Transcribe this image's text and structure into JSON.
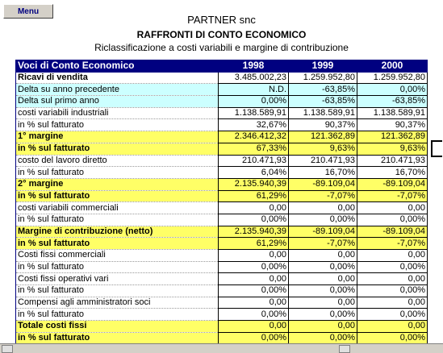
{
  "header": {
    "menu": "Menu",
    "company": "PARTNER snc",
    "title": "RAFFRONTI DI CONTO ECONOMICO",
    "subtitle": "Riclassificazione a costi variabili e margine di contribuzione"
  },
  "table": {
    "columns": [
      "Voci di Conto Economico",
      "1998",
      "1999",
      "2000"
    ],
    "rows": [
      {
        "cells": [
          "Ricavi di vendita",
          "3.485.002,23",
          "1.259.952,80",
          "1.259.952,80"
        ],
        "bold": true,
        "bg": "#ffffff"
      },
      {
        "cells": [
          "Delta su anno precedente",
          "N.D.",
          "-63,85%",
          "0,00%"
        ],
        "bold": false,
        "bg": "#ccffff"
      },
      {
        "cells": [
          "Delta sul primo anno",
          "0,00%",
          "-63,85%",
          "-63,85%"
        ],
        "bold": false,
        "bg": "#ccffff"
      },
      {
        "cells": [
          "costi variabili industriali",
          "1.138.589,91",
          "1.138.589,91",
          "1.138.589,91"
        ],
        "bold": false,
        "bg": "#ffffff"
      },
      {
        "cells": [
          "in % sul fatturato",
          "32,67%",
          "90,37%",
          "90,37%"
        ],
        "bold": false,
        "bg": "#ffffff"
      },
      {
        "cells": [
          "1° margine",
          "2.346.412,32",
          "121.362,89",
          "121.362,89"
        ],
        "bold": true,
        "bg": "#ffff66"
      },
      {
        "cells": [
          "in % sul fatturato",
          "67,33%",
          "9,63%",
          "9,63%"
        ],
        "bold": true,
        "bg": "#ffff66"
      },
      {
        "cells": [
          "costo del lavoro diretto",
          "210.471,93",
          "210.471,93",
          "210.471,93"
        ],
        "bold": false,
        "bg": "#ffffff"
      },
      {
        "cells": [
          "in % sul fatturato",
          "6,04%",
          "16,70%",
          "16,70%"
        ],
        "bold": false,
        "bg": "#ffffff"
      },
      {
        "cells": [
          "2° margine",
          "2.135.940,39",
          "-89.109,04",
          "-89.109,04"
        ],
        "bold": true,
        "bg": "#ffff66"
      },
      {
        "cells": [
          "in % sul fatturato",
          "61,29%",
          "-7,07%",
          "-7,07%"
        ],
        "bold": true,
        "bg": "#ffff66"
      },
      {
        "cells": [
          "costi variabili commerciali",
          "0,00",
          "0,00",
          "0,00"
        ],
        "bold": false,
        "bg": "#ffffff"
      },
      {
        "cells": [
          "in % sul fatturato",
          "0,00%",
          "0,00%",
          "0,00%"
        ],
        "bold": false,
        "bg": "#ffffff"
      },
      {
        "cells": [
          "Margine di contribuzione (netto)",
          "2.135.940,39",
          "-89.109,04",
          "-89.109,04"
        ],
        "bold": true,
        "bg": "#ffff66"
      },
      {
        "cells": [
          "in % sul fatturato",
          "61,29%",
          "-7,07%",
          "-7,07%"
        ],
        "bold": true,
        "bg": "#ffff66"
      },
      {
        "cells": [
          "Costi fissi commerciali",
          "0,00",
          "0,00",
          "0,00"
        ],
        "bold": false,
        "bg": "#ffffff"
      },
      {
        "cells": [
          "in % sul fatturato",
          "0,00%",
          "0,00%",
          "0,00%"
        ],
        "bold": false,
        "bg": "#ffffff"
      },
      {
        "cells": [
          "Costi fissi operativi vari",
          "0,00",
          "0,00",
          "0,00"
        ],
        "bold": false,
        "bg": "#ffffff"
      },
      {
        "cells": [
          "in % sul fatturato",
          "0,00%",
          "0,00%",
          "0,00%"
        ],
        "bold": false,
        "bg": "#ffffff"
      },
      {
        "cells": [
          "Compensi agli amministratori soci",
          "0,00",
          "0,00",
          "0,00"
        ],
        "bold": false,
        "bg": "#ffffff"
      },
      {
        "cells": [
          "in % sul fatturato",
          "0,00%",
          "0,00%",
          "0,00%"
        ],
        "bold": false,
        "bg": "#ffffff"
      },
      {
        "cells": [
          "Totale costi fissi",
          "0,00",
          "0,00",
          "0,00"
        ],
        "bold": true,
        "bg": "#ffff66"
      },
      {
        "cells": [
          "in % sul fatturato",
          "0,00%",
          "0,00%",
          "0,00%"
        ],
        "bold": true,
        "bg": "#ffff66"
      }
    ]
  }
}
